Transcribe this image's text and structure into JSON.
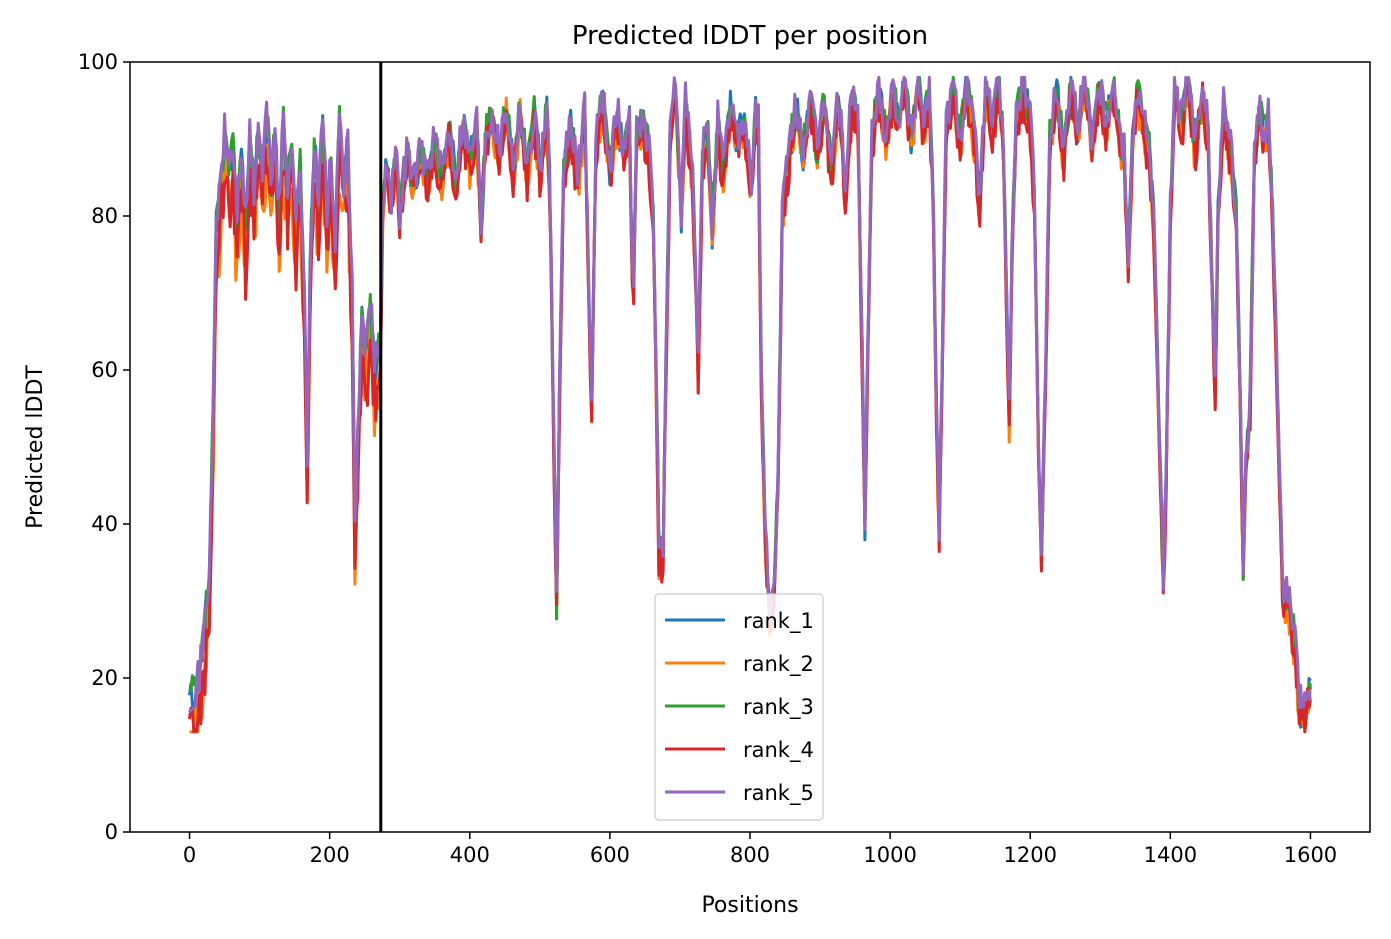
{
  "chart_data": {
    "type": "line",
    "title": "Predicted lDDT per position",
    "xlabel": "Positions",
    "ylabel": "Predicted lDDT",
    "xlim": [
      -85,
      1685
    ],
    "ylim": [
      0,
      100
    ],
    "xticks": [
      0,
      200,
      400,
      600,
      800,
      1000,
      1200,
      1400,
      1600
    ],
    "yticks": [
      0,
      20,
      40,
      60,
      80,
      100
    ],
    "vline_x": 273,
    "legend_position": "lower-center",
    "grid": false,
    "base_profile": [
      [
        0,
        17
      ],
      [
        8,
        18
      ],
      [
        15,
        20
      ],
      [
        22,
        27
      ],
      [
        28,
        33
      ],
      [
        34,
        55
      ],
      [
        38,
        78
      ],
      [
        44,
        84
      ],
      [
        50,
        90
      ],
      [
        56,
        86
      ],
      [
        62,
        88
      ],
      [
        68,
        80
      ],
      [
        74,
        88
      ],
      [
        80,
        78
      ],
      [
        86,
        90
      ],
      [
        92,
        82
      ],
      [
        98,
        91
      ],
      [
        104,
        85
      ],
      [
        110,
        93
      ],
      [
        116,
        84
      ],
      [
        122,
        90
      ],
      [
        128,
        80
      ],
      [
        134,
        92
      ],
      [
        140,
        83
      ],
      [
        146,
        90
      ],
      [
        152,
        78
      ],
      [
        158,
        86
      ],
      [
        164,
        70
      ],
      [
        168,
        46
      ],
      [
        172,
        72
      ],
      [
        178,
        90
      ],
      [
        184,
        82
      ],
      [
        190,
        92
      ],
      [
        196,
        80
      ],
      [
        202,
        86
      ],
      [
        208,
        76
      ],
      [
        214,
        92
      ],
      [
        220,
        84
      ],
      [
        226,
        88
      ],
      [
        232,
        70
      ],
      [
        236,
        40
      ],
      [
        240,
        50
      ],
      [
        246,
        66
      ],
      [
        252,
        62
      ],
      [
        258,
        68
      ],
      [
        264,
        60
      ],
      [
        270,
        63
      ],
      [
        272,
        60
      ],
      [
        276,
        82
      ],
      [
        282,
        87
      ],
      [
        288,
        82
      ],
      [
        294,
        88
      ],
      [
        300,
        80
      ],
      [
        310,
        88
      ],
      [
        320,
        84
      ],
      [
        330,
        88
      ],
      [
        340,
        85
      ],
      [
        350,
        90
      ],
      [
        360,
        84
      ],
      [
        370,
        91
      ],
      [
        380,
        85
      ],
      [
        390,
        92
      ],
      [
        400,
        87
      ],
      [
        410,
        92
      ],
      [
        416,
        78
      ],
      [
        422,
        90
      ],
      [
        432,
        93
      ],
      [
        442,
        88
      ],
      [
        452,
        94
      ],
      [
        462,
        86
      ],
      [
        472,
        94
      ],
      [
        482,
        85
      ],
      [
        492,
        93
      ],
      [
        500,
        86
      ],
      [
        510,
        93
      ],
      [
        515,
        82
      ],
      [
        519,
        55
      ],
      [
        524,
        29
      ],
      [
        528,
        55
      ],
      [
        534,
        86
      ],
      [
        544,
        92
      ],
      [
        554,
        84
      ],
      [
        564,
        94
      ],
      [
        574,
        55
      ],
      [
        580,
        90
      ],
      [
        590,
        95
      ],
      [
        600,
        86
      ],
      [
        610,
        93
      ],
      [
        620,
        88
      ],
      [
        628,
        92
      ],
      [
        633,
        68
      ],
      [
        638,
        90
      ],
      [
        648,
        92
      ],
      [
        656,
        88
      ],
      [
        662,
        80
      ],
      [
        666,
        60
      ],
      [
        670,
        36
      ],
      [
        676,
        36
      ],
      [
        680,
        60
      ],
      [
        686,
        90
      ],
      [
        694,
        97
      ],
      [
        702,
        80
      ],
      [
        708,
        94
      ],
      [
        718,
        85
      ],
      [
        726,
        60
      ],
      [
        732,
        88
      ],
      [
        740,
        90
      ],
      [
        746,
        78
      ],
      [
        754,
        92
      ],
      [
        762,
        85
      ],
      [
        772,
        94
      ],
      [
        782,
        90
      ],
      [
        792,
        92
      ],
      [
        802,
        84
      ],
      [
        808,
        93
      ],
      [
        812,
        92
      ],
      [
        816,
        60
      ],
      [
        822,
        38
      ],
      [
        828,
        28
      ],
      [
        834,
        30
      ],
      [
        840,
        45
      ],
      [
        846,
        80
      ],
      [
        856,
        88
      ],
      [
        866,
        94
      ],
      [
        876,
        88
      ],
      [
        886,
        94
      ],
      [
        896,
        88
      ],
      [
        906,
        95
      ],
      [
        916,
        86
      ],
      [
        926,
        95
      ],
      [
        936,
        84
      ],
      [
        946,
        96
      ],
      [
        954,
        92
      ],
      [
        960,
        62
      ],
      [
        964,
        40
      ],
      [
        968,
        62
      ],
      [
        974,
        90
      ],
      [
        984,
        96
      ],
      [
        994,
        90
      ],
      [
        1004,
        96
      ],
      [
        1012,
        92
      ],
      [
        1020,
        97
      ],
      [
        1030,
        90
      ],
      [
        1040,
        97
      ],
      [
        1048,
        92
      ],
      [
        1056,
        96
      ],
      [
        1062,
        80
      ],
      [
        1066,
        55
      ],
      [
        1070,
        38
      ],
      [
        1074,
        60
      ],
      [
        1080,
        92
      ],
      [
        1090,
        96
      ],
      [
        1100,
        90
      ],
      [
        1110,
        97
      ],
      [
        1120,
        90
      ],
      [
        1128,
        82
      ],
      [
        1136,
        96
      ],
      [
        1146,
        92
      ],
      [
        1156,
        97
      ],
      [
        1162,
        88
      ],
      [
        1166,
        70
      ],
      [
        1170,
        54
      ],
      [
        1174,
        75
      ],
      [
        1180,
        92
      ],
      [
        1190,
        97
      ],
      [
        1200,
        92
      ],
      [
        1206,
        82
      ],
      [
        1212,
        50
      ],
      [
        1216,
        36
      ],
      [
        1222,
        60
      ],
      [
        1228,
        90
      ],
      [
        1238,
        96
      ],
      [
        1248,
        88
      ],
      [
        1258,
        97
      ],
      [
        1268,
        92
      ],
      [
        1278,
        97
      ],
      [
        1288,
        90
      ],
      [
        1298,
        97
      ],
      [
        1308,
        92
      ],
      [
        1318,
        97
      ],
      [
        1328,
        90
      ],
      [
        1334,
        88
      ],
      [
        1340,
        74
      ],
      [
        1346,
        90
      ],
      [
        1352,
        96
      ],
      [
        1362,
        92
      ],
      [
        1370,
        88
      ],
      [
        1376,
        80
      ],
      [
        1382,
        60
      ],
      [
        1386,
        45
      ],
      [
        1390,
        33
      ],
      [
        1394,
        45
      ],
      [
        1400,
        80
      ],
      [
        1406,
        96
      ],
      [
        1416,
        92
      ],
      [
        1426,
        97
      ],
      [
        1436,
        88
      ],
      [
        1446,
        97
      ],
      [
        1454,
        90
      ],
      [
        1460,
        70
      ],
      [
        1464,
        56
      ],
      [
        1468,
        80
      ],
      [
        1476,
        94
      ],
      [
        1486,
        88
      ],
      [
        1494,
        80
      ],
      [
        1500,
        55
      ],
      [
        1504,
        34
      ],
      [
        1508,
        48
      ],
      [
        1514,
        56
      ],
      [
        1520,
        88
      ],
      [
        1528,
        93
      ],
      [
        1534,
        90
      ],
      [
        1540,
        92
      ],
      [
        1546,
        80
      ],
      [
        1552,
        60
      ],
      [
        1556,
        45
      ],
      [
        1560,
        32
      ],
      [
        1566,
        30
      ],
      [
        1572,
        28
      ],
      [
        1578,
        24
      ],
      [
        1584,
        16
      ],
      [
        1590,
        16
      ],
      [
        1596,
        18
      ],
      [
        1600,
        18
      ]
    ],
    "series": [
      {
        "name": "rank_1",
        "color": "#1f77b4",
        "seed": 11,
        "offset": 0.0
      },
      {
        "name": "rank_2",
        "color": "#ff7f0e",
        "seed": 23,
        "offset": -1.0
      },
      {
        "name": "rank_3",
        "color": "#2ca02c",
        "seed": 37,
        "offset": 0.4
      },
      {
        "name": "rank_4",
        "color": "#d62728",
        "seed": 53,
        "offset": -1.4
      },
      {
        "name": "rank_5",
        "color": "#9467bd",
        "seed": 71,
        "offset": 0.8
      }
    ]
  }
}
